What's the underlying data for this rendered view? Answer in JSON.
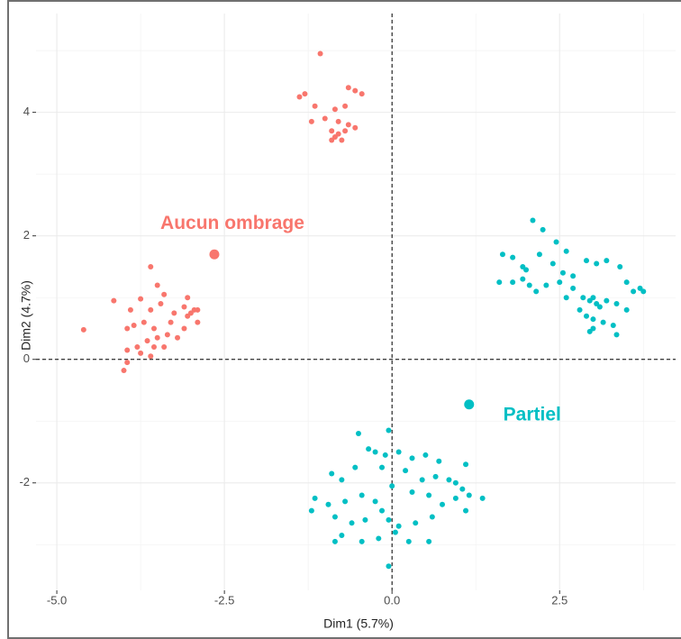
{
  "chart_data": {
    "type": "scatter",
    "x_label": "Dim1 (5.7%)",
    "y_label": "Dim2 (4.7%)",
    "xlim": [
      -5.31,
      4.23
    ],
    "ylim": [
      -3.74,
      5.6
    ],
    "xticks": [
      {
        "value": -5,
        "label": "-5.0"
      },
      {
        "value": -2.5,
        "label": "-2.5"
      },
      {
        "value": 0,
        "label": "0.0"
      },
      {
        "value": 2.5,
        "label": "2.5"
      }
    ],
    "yticks": [
      -2,
      0,
      2,
      4
    ],
    "grid": true,
    "reference_lines": [
      0,
      0
    ],
    "series": [
      {
        "name": "Aucun ombrage",
        "color": "#F8766D",
        "centroid": [
          -2.65,
          1.7
        ],
        "x": [
          -1.07,
          -1.3,
          -1.38,
          -0.65,
          -0.55,
          -0.45,
          -1.15,
          -0.85,
          -0.7,
          -1.0,
          -0.8,
          -0.65,
          -1.2,
          -0.9,
          -0.85,
          -0.8,
          -0.75,
          -0.9,
          -0.7,
          -0.55,
          -4.6,
          -4.15,
          -3.95,
          -3.9,
          -3.85,
          -3.75,
          -3.6,
          -3.5,
          -3.45,
          -3.4,
          -3.3,
          -3.25,
          -3.1,
          -3.05,
          -3.0,
          -2.95,
          -2.9,
          -3.05,
          -3.6,
          -3.7,
          -3.5,
          -3.65,
          -3.8,
          -3.95,
          -4.0,
          -3.95,
          -3.75,
          -3.6,
          -3.55,
          -3.35,
          -3.2,
          -3.4,
          -3.55,
          -2.9,
          -3.1
        ],
        "values": [
          4.95,
          4.3,
          4.25,
          4.4,
          4.35,
          4.3,
          4.1,
          4.05,
          4.1,
          3.9,
          3.85,
          3.8,
          3.85,
          3.7,
          3.6,
          3.65,
          3.55,
          3.55,
          3.7,
          3.75,
          0.48,
          0.95,
          0.5,
          0.8,
          0.55,
          0.98,
          1.5,
          1.2,
          0.9,
          1.05,
          0.6,
          0.75,
          0.85,
          1.0,
          0.75,
          0.8,
          0.6,
          0.7,
          0.8,
          0.6,
          0.35,
          0.3,
          0.2,
          0.15,
          -0.18,
          -0.05,
          0.1,
          0.05,
          0.5,
          0.4,
          0.35,
          0.2,
          0.2,
          0.8,
          0.5
        ]
      },
      {
        "name": "Partiel",
        "color": "#00BFC4",
        "centroid": [
          1.15,
          -0.73
        ],
        "x": [
          2.1,
          2.25,
          1.65,
          1.8,
          1.95,
          2.0,
          2.2,
          2.45,
          2.6,
          2.4,
          2.55,
          2.7,
          2.9,
          3.05,
          3.2,
          3.4,
          3.5,
          3.6,
          3.7,
          3.75,
          1.6,
          1.8,
          1.95,
          2.05,
          2.15,
          2.3,
          2.5,
          2.7,
          2.85,
          2.95,
          3.05,
          3.1,
          3.2,
          3.35,
          3.5,
          2.8,
          2.9,
          3.0,
          3.15,
          3.3,
          3.0,
          2.95,
          3.35,
          2.6,
          3.0,
          -0.05,
          -0.5,
          -0.35,
          -0.25,
          -0.1,
          0.1,
          0.3,
          0.5,
          0.7,
          1.1,
          -0.9,
          -0.75,
          -0.55,
          -0.15,
          0.2,
          0.45,
          0.65,
          0.85,
          0.95,
          1.05,
          1.15,
          1.35,
          -1.15,
          -1.2,
          -0.95,
          -0.7,
          -0.45,
          -0.25,
          0.0,
          0.3,
          0.55,
          0.75,
          0.95,
          1.1,
          -0.85,
          -0.6,
          -0.4,
          -0.15,
          -0.05,
          0.1,
          0.35,
          0.6,
          -0.75,
          -0.45,
          -0.2,
          0.05,
          0.25,
          0.55,
          -0.05,
          -0.85
        ],
        "values": [
          2.25,
          2.1,
          1.7,
          1.65,
          1.5,
          1.45,
          1.7,
          1.9,
          1.75,
          1.55,
          1.4,
          1.35,
          1.6,
          1.55,
          1.6,
          1.5,
          1.25,
          1.1,
          1.15,
          1.1,
          1.25,
          1.25,
          1.3,
          1.2,
          1.1,
          1.2,
          1.25,
          1.15,
          1.0,
          0.95,
          0.9,
          0.85,
          0.95,
          0.9,
          0.8,
          0.8,
          0.7,
          0.65,
          0.6,
          0.55,
          0.5,
          0.45,
          0.4,
          1.0,
          1.0,
          -1.15,
          -1.2,
          -1.45,
          -1.5,
          -1.55,
          -1.5,
          -1.6,
          -1.55,
          -1.65,
          -1.7,
          -1.85,
          -1.95,
          -1.75,
          -1.75,
          -1.8,
          -1.95,
          -1.9,
          -1.95,
          -2.0,
          -2.1,
          -2.2,
          -2.25,
          -2.25,
          -2.45,
          -2.35,
          -2.3,
          -2.2,
          -2.3,
          -2.05,
          -2.15,
          -2.2,
          -2.35,
          -2.25,
          -2.45,
          -2.55,
          -2.65,
          -2.6,
          -2.45,
          -2.6,
          -2.7,
          -2.65,
          -2.55,
          -2.85,
          -2.95,
          -2.9,
          -2.8,
          -2.95,
          -2.95,
          -3.35,
          -2.95
        ]
      }
    ]
  }
}
